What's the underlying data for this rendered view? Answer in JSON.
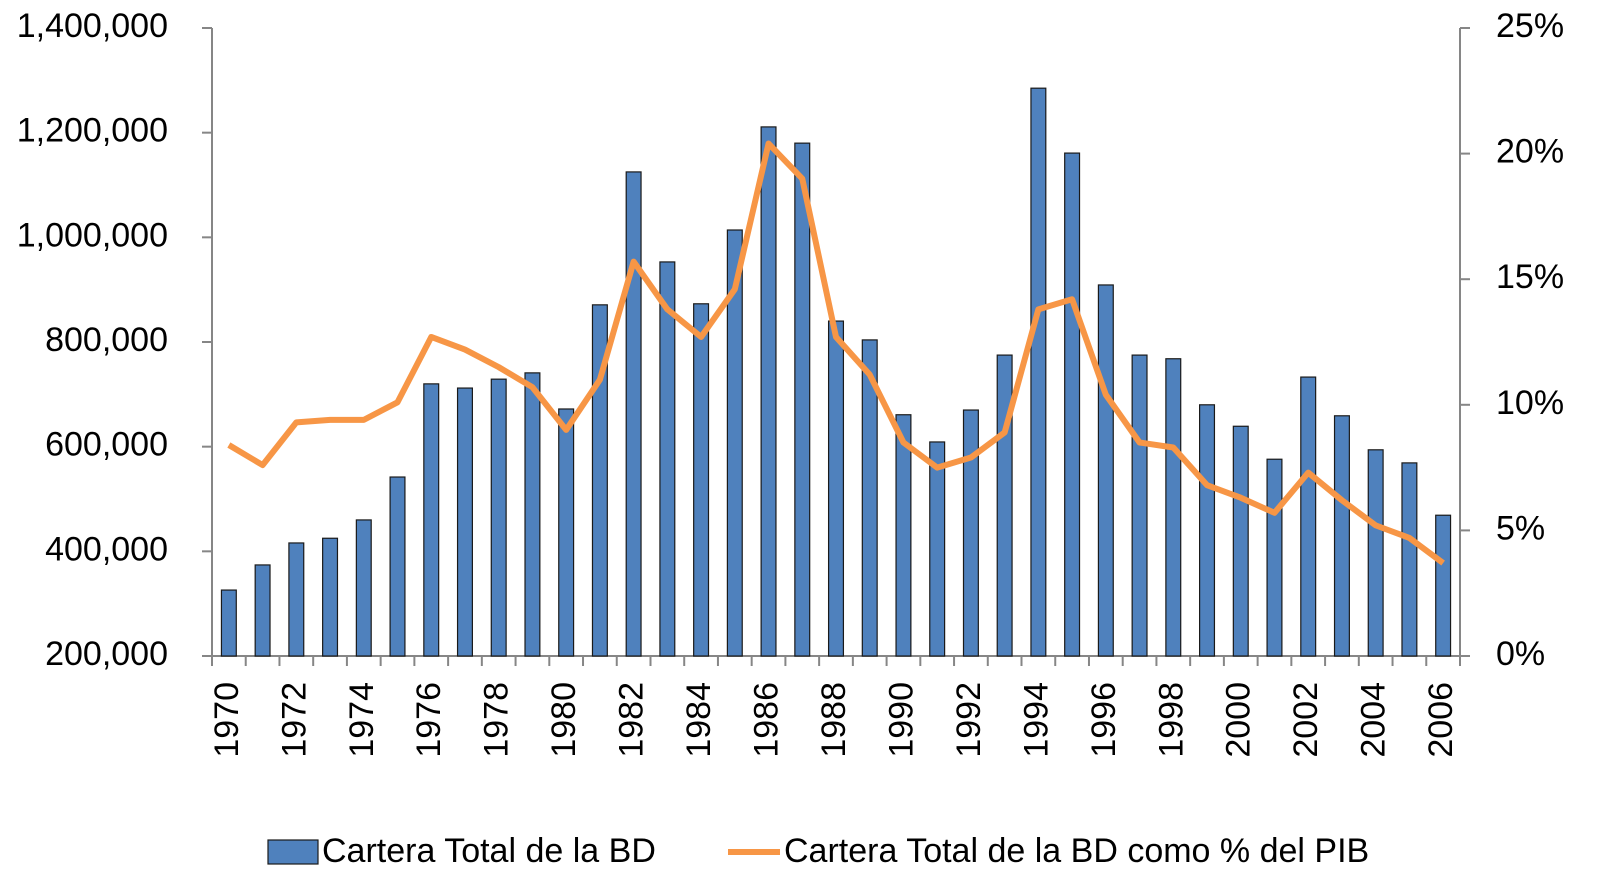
{
  "chart_data": {
    "type": "bar",
    "categories": [
      "1970",
      null,
      "1972",
      null,
      "1974",
      null,
      "1976",
      null,
      "1978",
      null,
      "1980",
      null,
      "1982",
      null,
      "1984",
      null,
      "1986",
      null,
      "1988",
      null,
      "1990",
      null,
      "1992",
      null,
      "1994",
      null,
      "1996",
      null,
      "1998",
      null,
      "2000",
      null,
      "2002",
      null,
      "2004",
      null,
      "2006"
    ],
    "series": [
      {
        "name": "Cartera Total de la BD",
        "color": "#4f81bd",
        "type": "bar",
        "values": [
          326000,
          374000,
          416000,
          425000,
          460000,
          542000,
          720000,
          712000,
          729000,
          741000,
          672000,
          871000,
          1125000,
          953000,
          873000,
          1014000,
          1211000,
          1180000,
          840000,
          804000,
          661000,
          609000,
          670000,
          775000,
          1285000,
          1161000,
          909000,
          775000,
          768000,
          680000,
          639000,
          576000,
          733000,
          659000,
          594000,
          569000,
          469000
        ]
      },
      {
        "name": "Cartera Total de la BD como % del PIB",
        "color": "#f79646",
        "type": "line",
        "axis": "y2",
        "values": [
          8.4,
          7.6,
          9.3,
          9.4,
          9.4,
          10.1,
          12.7,
          12.2,
          11.5,
          10.7,
          9.0,
          11.0,
          15.7,
          13.8,
          12.7,
          14.6,
          20.4,
          19.0,
          12.7,
          11.2,
          8.5,
          7.5,
          7.9,
          8.9,
          13.8,
          14.2,
          10.4,
          8.5,
          8.3,
          6.8,
          6.3,
          5.7,
          7.3,
          6.2,
          5.2,
          4.7,
          3.7
        ]
      }
    ],
    "ylim": [
      200000,
      1400000
    ],
    "yticks": [
      {
        "value": 200000,
        "label": "200,000"
      },
      {
        "value": 400000,
        "label": "400,000"
      },
      {
        "value": 600000,
        "label": "600,000"
      },
      {
        "value": 800000,
        "label": "800,000"
      },
      {
        "value": 1000000,
        "label": "1,000,000"
      },
      {
        "value": 1200000,
        "label": "1,200,000"
      },
      {
        "value": 1400000,
        "label": "1,400,000"
      }
    ],
    "y2lim": [
      0,
      25
    ],
    "y2ticks": [
      {
        "value": 0,
        "label": "0%"
      },
      {
        "value": 5,
        "label": "5%"
      },
      {
        "value": 10,
        "label": "10%"
      },
      {
        "value": 15,
        "label": "15%"
      },
      {
        "value": 20,
        "label": "20%"
      },
      {
        "value": 25,
        "label": "25%"
      }
    ],
    "grid": false,
    "legend": "bottom"
  }
}
